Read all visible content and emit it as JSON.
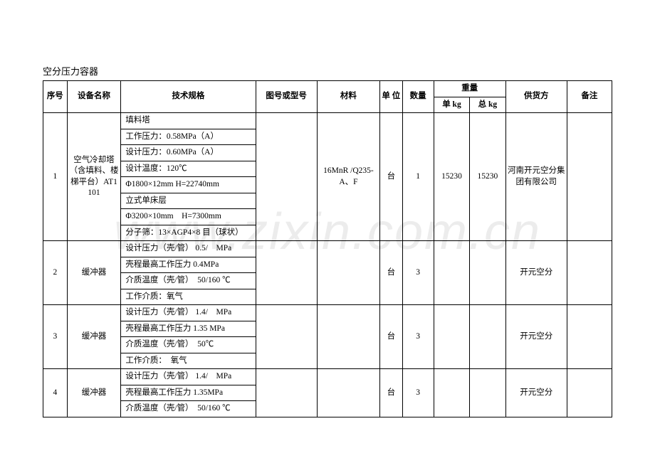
{
  "watermark": "www.zixin.com.cn",
  "title": "空分压力容器",
  "colors": {
    "background": "#ffffff",
    "text": "#000000",
    "border": "#000000",
    "watermark": "rgba(200,200,200,0.35)"
  },
  "headers": {
    "seq": "序号",
    "name": "设备名称",
    "spec": "技术规格",
    "model": "图号或型号",
    "material": "材料",
    "unit": "单\n位",
    "qty": "数量",
    "weight": "重量",
    "weight_unit": "单 kg",
    "weight_total": "总 kg",
    "supplier": "供货方",
    "remark": "备注"
  },
  "rows": [
    {
      "seq": "1",
      "name": "空气冷却塔（含填料、楼梯平台）AT1101",
      "specs": [
        "填料塔",
        "工作压力：0.58MPa（A）",
        "设计压力：0.60MPa（A）",
        "设计温度：120℃",
        "Φ1800×12mm H=22740mm",
        "立式单床层",
        "Φ3200×10mm　H=7300mm",
        "分子筛：13×AGP4×8 目（球状）"
      ],
      "model": "",
      "material": "16MnR /Q235-A、F",
      "unit": "台",
      "qty": "1",
      "wu": "15230",
      "wt": "15230",
      "supplier": "河南开元空分集团有限公司",
      "remark": ""
    },
    {
      "seq": "2",
      "name": "缓冲器",
      "specs": [
        "设计压力（壳/管） 0.5/　MPa",
        "壳程最高工作压力  0.4MPa",
        "介质温度（壳/管）　50/160 ℃",
        "工作介质：氧气"
      ],
      "model": "",
      "material": "",
      "unit": "台",
      "qty": "3",
      "wu": "",
      "wt": "",
      "supplier": "开元空分",
      "remark": ""
    },
    {
      "seq": "3",
      "name": "缓冲器",
      "specs": [
        "设计压力（壳/管） 1.4/　MPa",
        "壳程最高工作压力  1.35 MPa",
        "介质温度（壳/管）　50℃",
        "工作介质：　氧气"
      ],
      "model": "",
      "material": "",
      "unit": "台",
      "qty": "3",
      "wu": "",
      "wt": "",
      "supplier": "开元空分",
      "remark": ""
    },
    {
      "seq": "4",
      "name": "缓冲器",
      "specs": [
        "设计压力（壳/管） 1.4/　MPa",
        "壳程最高工作压力  1.35MPa",
        "介质温度（壳/管）　50/160 ℃"
      ],
      "model": "",
      "material": "",
      "unit": "台",
      "qty": "3",
      "wu": "",
      "wt": "",
      "supplier": "开元空分",
      "remark": ""
    }
  ]
}
